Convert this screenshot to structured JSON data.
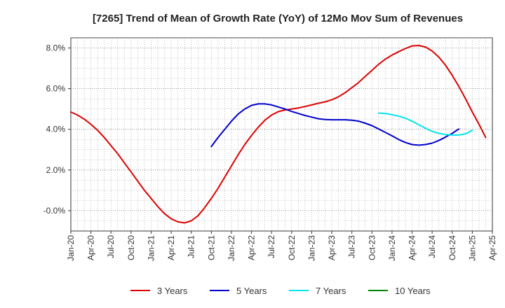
{
  "chart_data": {
    "type": "line",
    "title": "[7265]  Trend of Mean of Growth Rate (YoY) of 12Mo Mov Sum of Revenues",
    "xlabel": "",
    "ylabel": "",
    "x_ticks": [
      "Jan-20",
      "Apr-20",
      "Jul-20",
      "Oct-20",
      "Jan-21",
      "Apr-21",
      "Jul-21",
      "Oct-21",
      "Jan-22",
      "Apr-22",
      "Jul-22",
      "Oct-22",
      "Jan-23",
      "Apr-23",
      "Jul-23",
      "Oct-23",
      "Jan-24",
      "Apr-24",
      "Jul-24",
      "Oct-24",
      "Jan-25",
      "Apr-25"
    ],
    "y_ticks": [
      "-0.0%",
      "2.0%",
      "4.0%",
      "6.0%",
      "8.0%"
    ],
    "y_tick_values": [
      0,
      2,
      4,
      6,
      8
    ],
    "ylim": [
      -1.0,
      8.5
    ],
    "x_unit": "months since Jan-20",
    "xlim": [
      0,
      63
    ],
    "grid": true,
    "legend_position": "bottom",
    "series": [
      {
        "name": "3 Years",
        "color": "#dd0000",
        "points": [
          [
            0,
            4.85
          ],
          [
            1,
            4.7
          ],
          [
            2,
            4.5
          ],
          [
            3,
            4.25
          ],
          [
            4,
            3.95
          ],
          [
            5,
            3.6
          ],
          [
            6,
            3.2
          ],
          [
            7,
            2.8
          ],
          [
            8,
            2.35
          ],
          [
            9,
            1.9
          ],
          [
            10,
            1.45
          ],
          [
            11,
            1.0
          ],
          [
            12,
            0.6
          ],
          [
            13,
            0.2
          ],
          [
            14,
            -0.15
          ],
          [
            15,
            -0.4
          ],
          [
            16,
            -0.55
          ],
          [
            17,
            -0.6
          ],
          [
            18,
            -0.5
          ],
          [
            19,
            -0.25
          ],
          [
            20,
            0.15
          ],
          [
            21,
            0.6
          ],
          [
            22,
            1.1
          ],
          [
            23,
            1.65
          ],
          [
            24,
            2.2
          ],
          [
            25,
            2.75
          ],
          [
            26,
            3.25
          ],
          [
            27,
            3.7
          ],
          [
            28,
            4.1
          ],
          [
            29,
            4.45
          ],
          [
            30,
            4.7
          ],
          [
            31,
            4.87
          ],
          [
            32,
            4.95
          ],
          [
            33,
            5.0
          ],
          [
            34,
            5.05
          ],
          [
            35,
            5.12
          ],
          [
            36,
            5.2
          ],
          [
            37,
            5.28
          ],
          [
            38,
            5.35
          ],
          [
            39,
            5.45
          ],
          [
            40,
            5.6
          ],
          [
            41,
            5.8
          ],
          [
            42,
            6.05
          ],
          [
            43,
            6.3
          ],
          [
            44,
            6.6
          ],
          [
            45,
            6.9
          ],
          [
            46,
            7.2
          ],
          [
            47,
            7.45
          ],
          [
            48,
            7.65
          ],
          [
            49,
            7.82
          ],
          [
            50,
            7.97
          ],
          [
            51,
            8.1
          ],
          [
            52,
            8.12
          ],
          [
            53,
            8.05
          ],
          [
            54,
            7.85
          ],
          [
            55,
            7.55
          ],
          [
            56,
            7.15
          ],
          [
            57,
            6.65
          ],
          [
            58,
            6.1
          ],
          [
            59,
            5.5
          ],
          [
            60,
            4.85
          ],
          [
            61,
            4.25
          ],
          [
            62,
            3.6
          ]
        ]
      },
      {
        "name": "5 Years",
        "color": "#0000cc",
        "points": [
          [
            21,
            3.15
          ],
          [
            22,
            3.6
          ],
          [
            23,
            4.0
          ],
          [
            24,
            4.4
          ],
          [
            25,
            4.75
          ],
          [
            26,
            5.0
          ],
          [
            27,
            5.18
          ],
          [
            28,
            5.25
          ],
          [
            29,
            5.25
          ],
          [
            30,
            5.2
          ],
          [
            31,
            5.1
          ],
          [
            32,
            5.0
          ],
          [
            33,
            4.88
          ],
          [
            34,
            4.78
          ],
          [
            35,
            4.68
          ],
          [
            36,
            4.6
          ],
          [
            37,
            4.52
          ],
          [
            38,
            4.48
          ],
          [
            39,
            4.47
          ],
          [
            40,
            4.47
          ],
          [
            41,
            4.47
          ],
          [
            42,
            4.45
          ],
          [
            43,
            4.4
          ],
          [
            44,
            4.3
          ],
          [
            45,
            4.18
          ],
          [
            46,
            4.02
          ],
          [
            47,
            3.85
          ],
          [
            48,
            3.68
          ],
          [
            49,
            3.5
          ],
          [
            50,
            3.35
          ],
          [
            51,
            3.25
          ],
          [
            52,
            3.22
          ],
          [
            53,
            3.25
          ],
          [
            54,
            3.32
          ],
          [
            55,
            3.45
          ],
          [
            56,
            3.62
          ],
          [
            57,
            3.8
          ],
          [
            58,
            4.02
          ]
        ]
      },
      {
        "name": "7 Years",
        "color": "#00e5ee",
        "points": [
          [
            46,
            4.8
          ],
          [
            47,
            4.78
          ],
          [
            48,
            4.72
          ],
          [
            49,
            4.65
          ],
          [
            50,
            4.55
          ],
          [
            51,
            4.4
          ],
          [
            52,
            4.22
          ],
          [
            53,
            4.05
          ],
          [
            54,
            3.9
          ],
          [
            55,
            3.8
          ],
          [
            56,
            3.74
          ],
          [
            57,
            3.72
          ],
          [
            58,
            3.72
          ],
          [
            59,
            3.78
          ],
          [
            60,
            3.95
          ]
        ]
      },
      {
        "name": "10 Years",
        "color": "#008800",
        "points": []
      }
    ]
  }
}
